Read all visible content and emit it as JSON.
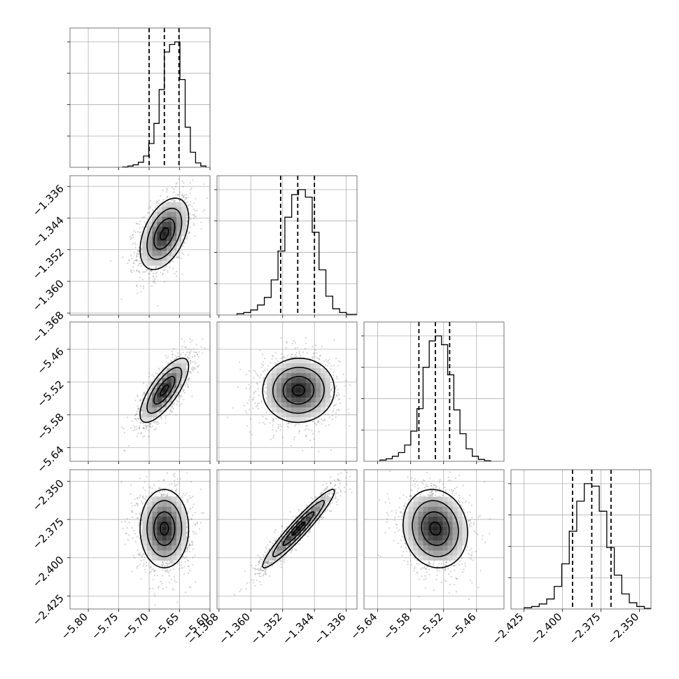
{
  "chart_data": {
    "type": "corner",
    "parameters": [
      {
        "range": [
          -5.83,
          -5.6
        ],
        "ticks": [
          -5.8,
          -5.75,
          -5.7,
          -5.65,
          -5.6
        ],
        "tick_labels": [
          "−5.80",
          "−5.75",
          "−5.70",
          "−5.65",
          "−5.60"
        ],
        "quantiles": [
          -5.7,
          -5.675,
          -5.651
        ],
        "mean": -5.675,
        "sd": 0.019
      },
      {
        "range": [
          -1.3685,
          -1.3333
        ],
        "ticks": [
          -1.368,
          -1.36,
          -1.352,
          -1.344,
          -1.336
        ],
        "tick_labels": [
          "−1.368",
          "−1.360",
          "−1.352",
          "−1.344",
          "−1.336"
        ],
        "quantiles": [
          -1.3525,
          -1.3482,
          -1.344
        ],
        "mean": -1.348,
        "sd": 0.0043
      },
      {
        "range": [
          -5.665,
          -5.41
        ],
        "ticks": [
          -5.64,
          -5.58,
          -5.52,
          -5.46
        ],
        "tick_labels": [
          "−5.64",
          "−5.58",
          "−5.52",
          "−5.46"
        ],
        "quantiles": [
          -5.565,
          -5.535,
          -5.509
        ],
        "mean": -5.535,
        "sd": 0.028
      },
      {
        "range": [
          -2.4335,
          -2.3425
        ],
        "ticks": [
          -2.425,
          -2.4,
          -2.375,
          -2.35
        ],
        "tick_labels": [
          "−2.425",
          "−2.400",
          "−2.375",
          "−2.350"
        ],
        "quantiles": [
          -2.3935,
          -2.381,
          -2.3685
        ],
        "mean": -2.381,
        "sd": 0.0122
      }
    ],
    "diagonal_histograms": [
      [
        0.003,
        0.01,
        0.02,
        0.04,
        0.09,
        0.19,
        0.35,
        0.62,
        0.92,
        0.98,
        1.0,
        0.7,
        0.32,
        0.12,
        0.035,
        0.01
      ],
      [
        0.01,
        0.02,
        0.04,
        0.08,
        0.14,
        0.28,
        0.51,
        0.78,
        0.96,
        1.0,
        0.94,
        0.66,
        0.36,
        0.15,
        0.05,
        0.02,
        0.005,
        0.005
      ],
      [
        0.01,
        0.02,
        0.04,
        0.07,
        0.13,
        0.24,
        0.42,
        0.75,
        0.96,
        1.0,
        0.93,
        0.69,
        0.41,
        0.22,
        0.1,
        0.04,
        0.015,
        0.005
      ],
      [
        0.01,
        0.02,
        0.04,
        0.08,
        0.18,
        0.36,
        0.62,
        0.86,
        1.0,
        0.98,
        0.78,
        0.49,
        0.27,
        0.12,
        0.05,
        0.02,
        0.005,
        0.002
      ]
    ],
    "correlations": {
      "1_0": 0.45,
      "2_0": 0.75,
      "2_1": 0.02,
      "3_0": 0.0,
      "3_1": 0.95,
      "3_2": -0.1
    },
    "x_tick_labels_rotated": true,
    "grid": true
  }
}
